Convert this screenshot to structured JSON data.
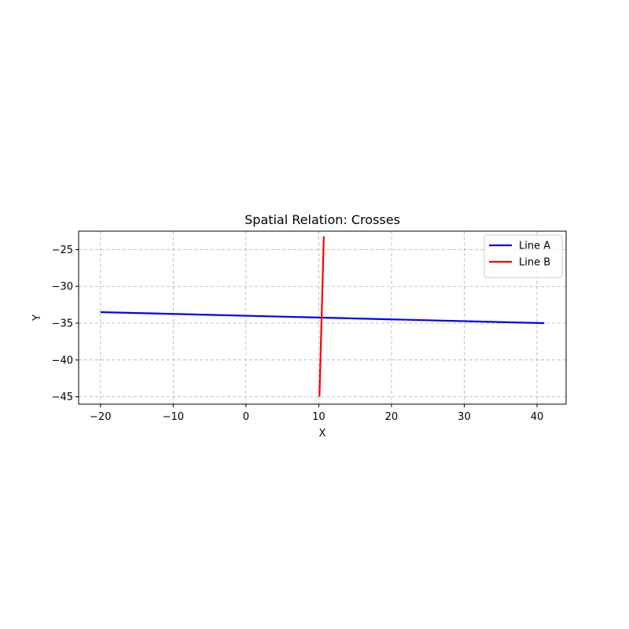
{
  "chart_data": {
    "type": "line",
    "title": "Spatial Relation: Crosses",
    "xlabel": "X",
    "ylabel": "Y",
    "xlim": [
      -23,
      44
    ],
    "ylim": [
      -46,
      -22.5
    ],
    "xticks": [
      -20,
      -10,
      0,
      10,
      20,
      30,
      40
    ],
    "yticks": [
      -25,
      -30,
      -35,
      -40,
      -45
    ],
    "xtick_labels": [
      "−20",
      "−10",
      "0",
      "10",
      "20",
      "30",
      "40"
    ],
    "ytick_labels": [
      "−25",
      "−30",
      "−35",
      "−40",
      "−45"
    ],
    "grid": true,
    "legend_position": "top-right",
    "series": [
      {
        "name": "Line A",
        "color": "#0000ff",
        "x": [
          -20,
          41
        ],
        "y": [
          -33.5,
          -35.0
        ]
      },
      {
        "name": "Line B",
        "color": "#ff0000",
        "x": [
          10.1,
          10.7
        ],
        "y": [
          -45.0,
          -23.2
        ]
      }
    ]
  }
}
